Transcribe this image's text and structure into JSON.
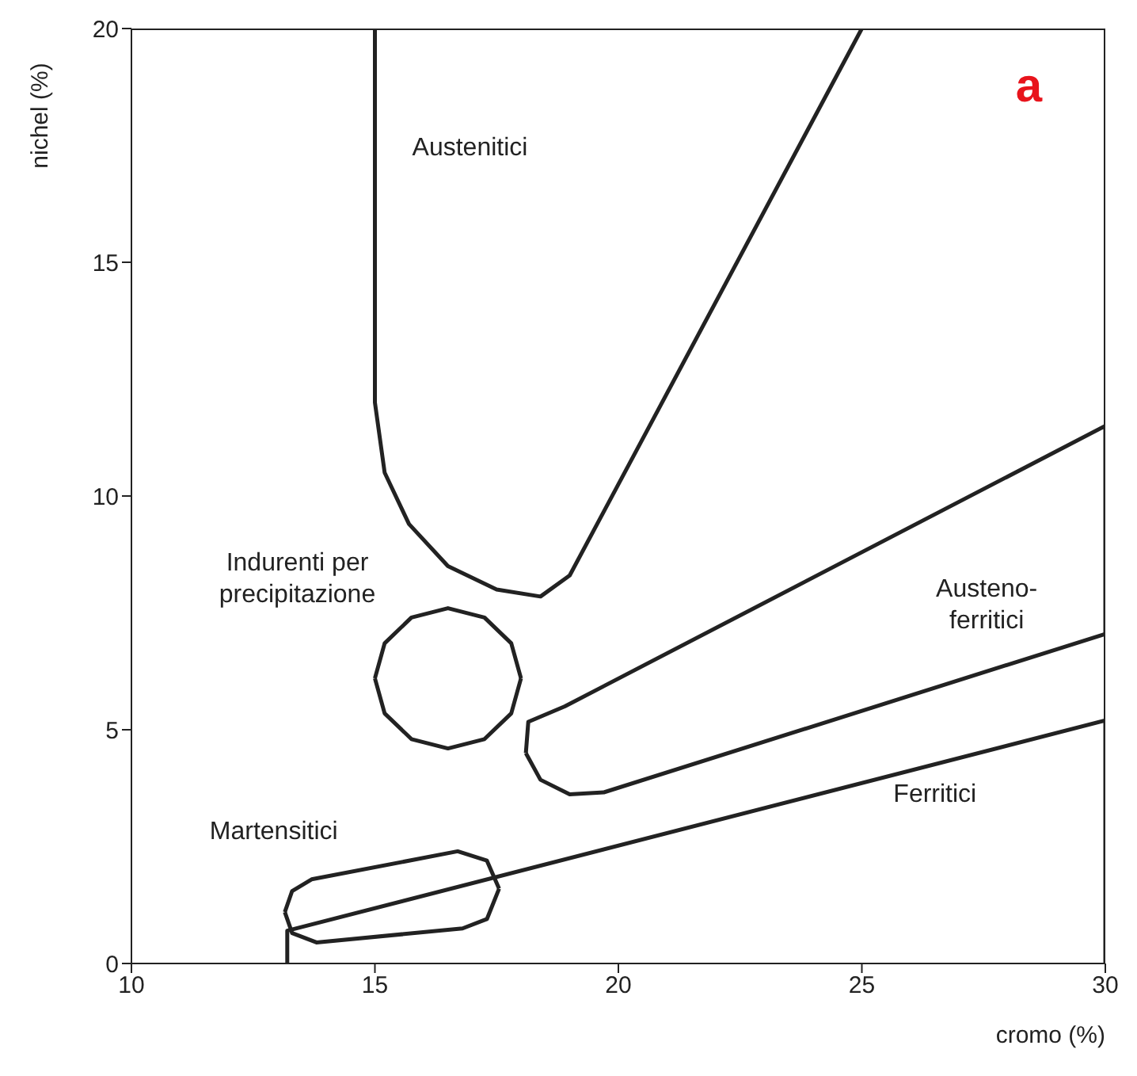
{
  "chart_data": {
    "type": "line",
    "xlabel": "cromo (%)",
    "ylabel": "nichel (%)",
    "xlim": [
      10,
      30
    ],
    "ylim": [
      0,
      20
    ],
    "xticks": [
      10,
      15,
      20,
      25,
      30
    ],
    "yticks": [
      0,
      5,
      10,
      15,
      20
    ],
    "grid": false,
    "legend": false,
    "marker": "none",
    "line_style": "solid",
    "annotations": [
      "a"
    ],
    "series": [
      {
        "name": "Austenitici",
        "color": "#222222",
        "x": [
          15,
          15,
          15.2,
          15.7,
          16.5,
          17.5,
          18.4,
          19.0,
          25
        ],
        "values": [
          20,
          12,
          10.5,
          9.4,
          8.5,
          8.0,
          7.85,
          8.3,
          20
        ]
      },
      {
        "name": "Indurenti per precipitazione",
        "color": "#222222",
        "x": [
          15.0,
          15.2,
          15.75,
          16.5,
          17.25,
          17.8,
          18.0
        ],
        "values": [
          6.1,
          6.85,
          7.4,
          7.6,
          7.4,
          6.85,
          6.1
        ]
      },
      {
        "color": "#222222",
        "x": [
          15.0,
          15.2,
          15.75,
          16.5,
          17.25,
          17.8,
          18.0
        ],
        "values": [
          6.1,
          5.35,
          4.8,
          4.6,
          4.8,
          5.35,
          6.1
        ]
      },
      {
        "name": "Austeno-ferritici",
        "color": "#222222",
        "x": [
          18.1,
          18.15,
          18.9,
          30,
          30
        ],
        "values": [
          4.5,
          5.17,
          5.5,
          11.5,
          7.05
        ]
      },
      {
        "color": "#222222",
        "x": [
          18.1,
          18.4,
          19.0,
          19.7,
          30
        ],
        "values": [
          4.5,
          3.93,
          3.62,
          3.66,
          7.05
        ]
      },
      {
        "name": "Martensitici",
        "color": "#222222",
        "x": [
          13.15,
          13.3,
          13.7,
          16.7,
          17.3,
          17.55
        ],
        "values": [
          1.1,
          1.55,
          1.8,
          2.4,
          2.2,
          1.6
        ]
      },
      {
        "color": "#222222",
        "x": [
          13.15,
          13.3,
          13.8,
          16.8,
          17.3,
          17.55
        ],
        "values": [
          1.1,
          0.65,
          0.45,
          0.75,
          0.95,
          1.6
        ]
      },
      {
        "name": "Ferritici",
        "color": "#222222",
        "x": [
          13.2,
          13.2,
          30,
          30
        ],
        "values": [
          0,
          0.7,
          5.2,
          0
        ]
      }
    ]
  }
}
